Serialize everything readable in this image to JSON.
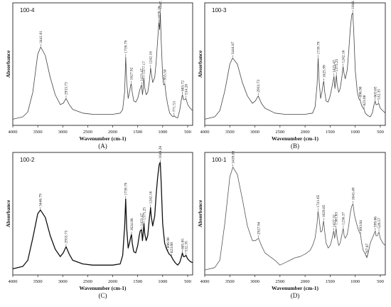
{
  "chart_data": [
    {
      "type": "line",
      "panel_label": "(A)",
      "sample": "100-4",
      "xlabel": "Wavenumber (cm-1)",
      "ylabel": "Absorbance",
      "xlim": [
        4000,
        400
      ],
      "x_ticks": [
        4000,
        3500,
        3000,
        2500,
        2000,
        1500,
        1000,
        500
      ],
      "annotations": [
        {
          "x": 3441,
          "label": "3441.01"
        },
        {
          "x": 2934,
          "label": "2933.73"
        },
        {
          "x": 1740,
          "label": "1739.79"
        },
        {
          "x": 1628,
          "label": "1627.92"
        },
        {
          "x": 1423,
          "label": "1423.47"
        },
        {
          "x": 1377,
          "label": "1377.17"
        },
        {
          "x": 1242,
          "label": "1242.16"
        },
        {
          "x": 1076,
          "label": "1076.28"
        },
        {
          "x": 1047,
          "label": "1047.35"
        },
        {
          "x": 956,
          "label": "955.50"
        },
        {
          "x": 772,
          "label": "771.53"
        },
        {
          "x": 603,
          "label": "603.72"
        },
        {
          "x": 534,
          "label": "534.28"
        }
      ],
      "series": [
        {
          "x": [
            4000,
            3800,
            3700,
            3600,
            3500,
            3441,
            3350,
            3250,
            3150,
            3050,
            2990,
            2934,
            2870,
            2800,
            2600,
            2400,
            2200,
            2000,
            1850,
            1800,
            1760,
            1740,
            1720,
            1690,
            1660,
            1640,
            1628,
            1610,
            1580,
            1540,
            1500,
            1470,
            1450,
            1423,
            1405,
            1390,
            1377,
            1360,
            1330,
            1300,
            1270,
            1250,
            1242,
            1230,
            1200,
            1160,
            1130,
            1100,
            1076,
            1060,
            1047,
            1030,
            1000,
            980,
            956,
            930,
            900,
            860,
            820,
            790,
            772,
            750,
            700,
            660,
            630,
            610,
            603,
            585,
            560,
            534,
            500,
            450,
            400
          ],
          "y": [
            0.05,
            0.07,
            0.11,
            0.27,
            0.58,
            0.64,
            0.57,
            0.39,
            0.25,
            0.17,
            0.18,
            0.22,
            0.17,
            0.13,
            0.1,
            0.09,
            0.09,
            0.09,
            0.1,
            0.13,
            0.28,
            0.56,
            0.36,
            0.22,
            0.28,
            0.33,
            0.34,
            0.27,
            0.2,
            0.19,
            0.22,
            0.27,
            0.3,
            0.33,
            0.25,
            0.3,
            0.39,
            0.31,
            0.25,
            0.27,
            0.35,
            0.43,
            0.47,
            0.43,
            0.35,
            0.39,
            0.52,
            0.7,
            0.84,
            0.78,
            0.92,
            0.7,
            0.4,
            0.33,
            0.34,
            0.24,
            0.17,
            0.1,
            0.08,
            0.07,
            0.08,
            0.07,
            0.06,
            0.12,
            0.2,
            0.24,
            0.25,
            0.21,
            0.21,
            0.22,
            0.17,
            0.14,
            0.12
          ]
        }
      ]
    },
    {
      "type": "line",
      "panel_label": "(B)",
      "sample": "100-3",
      "xlabel": "Wavenumber (cm-1)",
      "ylabel": "Absorbance",
      "xlim": [
        4000,
        400
      ],
      "x_ticks": [
        4000,
        3500,
        3000,
        2500,
        2000,
        1500,
        1000,
        500
      ],
      "annotations": [
        {
          "x": 3445,
          "label": "3444.87"
        },
        {
          "x": 2934,
          "label": "2933.73"
        },
        {
          "x": 1740,
          "label": "1739.79"
        },
        {
          "x": 1626,
          "label": "1625.99"
        },
        {
          "x": 1423,
          "label": "1423.47"
        },
        {
          "x": 1375,
          "label": "1375.25"
        },
        {
          "x": 1242,
          "label": "1242.16"
        },
        {
          "x": 1049,
          "label": "1049.28"
        },
        {
          "x": 897,
          "label": "896.90"
        },
        {
          "x": 824,
          "label": "823.60"
        },
        {
          "x": 604,
          "label": "603.65"
        },
        {
          "x": 532,
          "label": "532.35"
        }
      ],
      "series": [
        {
          "x": [
            4000,
            3800,
            3700,
            3600,
            3500,
            3445,
            3350,
            3250,
            3150,
            3050,
            2990,
            2934,
            2870,
            2800,
            2600,
            2400,
            2200,
            2000,
            1850,
            1800,
            1760,
            1740,
            1720,
            1690,
            1660,
            1640,
            1626,
            1610,
            1580,
            1540,
            1500,
            1470,
            1450,
            1423,
            1405,
            1390,
            1375,
            1360,
            1330,
            1300,
            1270,
            1250,
            1242,
            1230,
            1200,
            1160,
            1130,
            1100,
            1070,
            1049,
            1030,
            1000,
            960,
            930,
            897,
            870,
            840,
            824,
            800,
            750,
            700,
            660,
            630,
            610,
            604,
            585,
            560,
            532,
            500,
            450,
            400
          ],
          "y": [
            0.05,
            0.07,
            0.12,
            0.28,
            0.5,
            0.55,
            0.5,
            0.35,
            0.24,
            0.18,
            0.2,
            0.24,
            0.18,
            0.14,
            0.1,
            0.09,
            0.09,
            0.09,
            0.1,
            0.15,
            0.33,
            0.55,
            0.36,
            0.22,
            0.28,
            0.34,
            0.36,
            0.28,
            0.2,
            0.19,
            0.24,
            0.3,
            0.34,
            0.4,
            0.3,
            0.35,
            0.41,
            0.33,
            0.27,
            0.3,
            0.38,
            0.45,
            0.48,
            0.44,
            0.38,
            0.45,
            0.6,
            0.78,
            0.9,
            0.92,
            0.78,
            0.45,
            0.28,
            0.22,
            0.2,
            0.16,
            0.14,
            0.13,
            0.1,
            0.08,
            0.07,
            0.1,
            0.16,
            0.19,
            0.2,
            0.17,
            0.17,
            0.18,
            0.14,
            0.12,
            0.1
          ]
        }
      ]
    },
    {
      "type": "line",
      "panel_label": "(C)",
      "sample": "100-2",
      "xlabel": "Wavenumber (cm-1)",
      "ylabel": "Absorbance",
      "xlim": [
        4000,
        400
      ],
      "x_ticks": [
        4000,
        3500,
        3000,
        2500,
        2000,
        1500,
        1000,
        500
      ],
      "annotations": [
        {
          "x": 3447,
          "label": "3446.79"
        },
        {
          "x": 2934,
          "label": "2933.73"
        },
        {
          "x": 1740,
          "label": "1739.79"
        },
        {
          "x": 1624,
          "label": "1624.06"
        },
        {
          "x": 1423,
          "label": "1423.47"
        },
        {
          "x": 1375,
          "label": "1375.25"
        },
        {
          "x": 1242,
          "label": "1242.16"
        },
        {
          "x": 1049,
          "label": "1049.28"
        },
        {
          "x": 897,
          "label": "896.90"
        },
        {
          "x": 824,
          "label": "823.60"
        },
        {
          "x": 606,
          "label": "605.65"
        },
        {
          "x": 532,
          "label": "532.35"
        }
      ],
      "series": [
        {
          "x": [
            4000,
            3800,
            3700,
            3600,
            3500,
            3447,
            3350,
            3250,
            3150,
            3050,
            2990,
            2934,
            2870,
            2800,
            2600,
            2400,
            2200,
            2000,
            1850,
            1800,
            1760,
            1740,
            1720,
            1690,
            1660,
            1640,
            1624,
            1610,
            1580,
            1540,
            1500,
            1470,
            1450,
            1423,
            1405,
            1390,
            1375,
            1360,
            1330,
            1300,
            1270,
            1250,
            1242,
            1230,
            1200,
            1160,
            1130,
            1100,
            1070,
            1049,
            1030,
            1000,
            960,
            930,
            897,
            870,
            840,
            824,
            800,
            750,
            700,
            660,
            630,
            610,
            606,
            585,
            560,
            532,
            500,
            450,
            400
          ],
          "y": [
            0.05,
            0.07,
            0.12,
            0.3,
            0.5,
            0.53,
            0.47,
            0.32,
            0.21,
            0.15,
            0.18,
            0.23,
            0.17,
            0.12,
            0.09,
            0.08,
            0.08,
            0.08,
            0.09,
            0.16,
            0.4,
            0.62,
            0.38,
            0.22,
            0.27,
            0.31,
            0.33,
            0.26,
            0.19,
            0.18,
            0.24,
            0.32,
            0.36,
            0.37,
            0.28,
            0.34,
            0.42,
            0.34,
            0.28,
            0.32,
            0.45,
            0.52,
            0.55,
            0.48,
            0.4,
            0.48,
            0.66,
            0.8,
            0.9,
            0.92,
            0.76,
            0.42,
            0.26,
            0.22,
            0.19,
            0.17,
            0.16,
            0.15,
            0.13,
            0.1,
            0.08,
            0.1,
            0.14,
            0.17,
            0.18,
            0.15,
            0.15,
            0.16,
            0.13,
            0.11,
            0.1
          ]
        }
      ]
    },
    {
      "type": "line",
      "panel_label": "(D)",
      "sample": "100-1",
      "xlabel": "Wavenumber (cm-1)",
      "ylabel": "Absorbance",
      "xlim": [
        4000,
        400
      ],
      "x_ticks": [
        4000,
        3500,
        3000,
        2500,
        2000,
        1500,
        1000,
        500
      ],
      "annotations": [
        {
          "x": 3439,
          "label": "3439.08"
        },
        {
          "x": 2928,
          "label": "2927.94"
        },
        {
          "x": 1742,
          "label": "1741.65"
        },
        {
          "x": 1630,
          "label": "1629.85"
        },
        {
          "x": 1427,
          "label": "1427.32"
        },
        {
          "x": 1381,
          "label": "1381.03"
        },
        {
          "x": 1237,
          "label": "1236.37"
        },
        {
          "x": 1043,
          "label": "1043.49"
        },
        {
          "x": 894,
          "label": "893.04"
        },
        {
          "x": 768,
          "label": "767.67"
        },
        {
          "x": 600,
          "label": "599.86"
        },
        {
          "x": 527,
          "label": "526.57"
        }
      ],
      "series": [
        {
          "x": [
            4000,
            3800,
            3700,
            3600,
            3500,
            3439,
            3350,
            3250,
            3150,
            3050,
            2990,
            2928,
            2870,
            2800,
            2700,
            2600,
            2500,
            2400,
            2300,
            2200,
            2100,
            2000,
            1900,
            1850,
            1800,
            1760,
            1742,
            1720,
            1690,
            1660,
            1640,
            1630,
            1610,
            1580,
            1540,
            1500,
            1470,
            1450,
            1427,
            1410,
            1395,
            1381,
            1360,
            1330,
            1300,
            1270,
            1250,
            1237,
            1220,
            1200,
            1160,
            1130,
            1100,
            1070,
            1043,
            1020,
            1000,
            960,
            930,
            894,
            870,
            840,
            800,
            768,
            740,
            700,
            660,
            630,
            610,
            600,
            585,
            560,
            540,
            527,
            500,
            450,
            400
          ],
          "y": [
            0.04,
            0.06,
            0.12,
            0.42,
            0.8,
            0.88,
            0.82,
            0.62,
            0.4,
            0.28,
            0.28,
            0.3,
            0.24,
            0.18,
            0.15,
            0.12,
            0.08,
            0.1,
            0.12,
            0.14,
            0.15,
            0.17,
            0.2,
            0.24,
            0.3,
            0.42,
            0.52,
            0.46,
            0.35,
            0.36,
            0.42,
            0.44,
            0.36,
            0.26,
            0.22,
            0.24,
            0.28,
            0.32,
            0.36,
            0.3,
            0.34,
            0.38,
            0.3,
            0.24,
            0.26,
            0.32,
            0.36,
            0.38,
            0.32,
            0.3,
            0.33,
            0.4,
            0.5,
            0.56,
            0.58,
            0.5,
            0.46,
            0.4,
            0.36,
            0.33,
            0.26,
            0.2,
            0.17,
            0.14,
            0.18,
            0.26,
            0.3,
            0.33,
            0.35,
            0.36,
            0.32,
            0.32,
            0.34,
            0.35,
            0.3,
            0.26,
            0.24
          ]
        }
      ]
    }
  ]
}
